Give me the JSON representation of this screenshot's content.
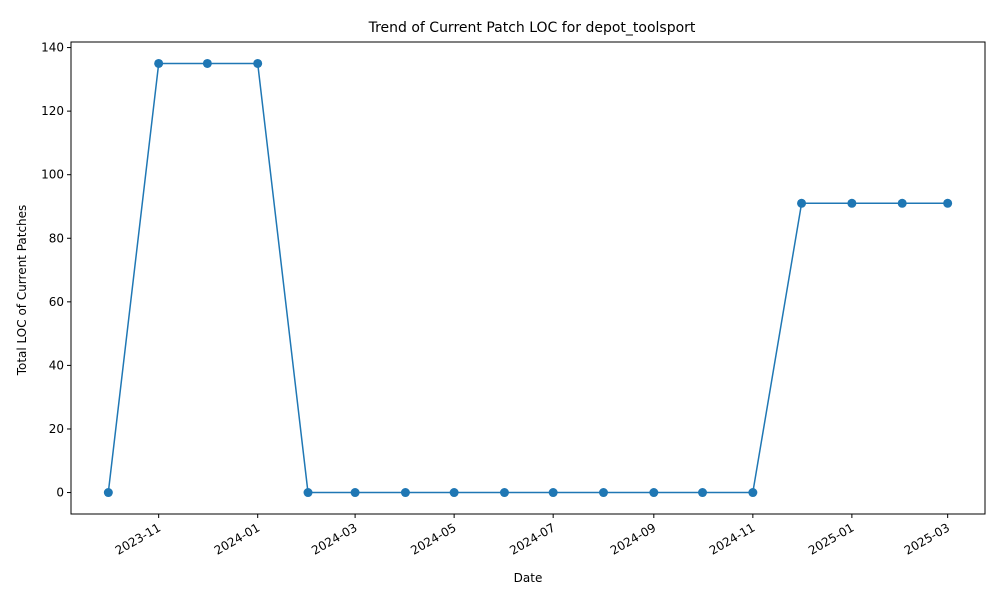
{
  "chart_data": {
    "type": "line",
    "title": "Trend of Current Patch LOC for depot_toolsport",
    "xlabel": "Date",
    "ylabel": "Total LOC of Current Patches",
    "x": [
      "2023-10-01",
      "2023-11-01",
      "2023-12-01",
      "2024-01-01",
      "2024-02-01",
      "2024-03-01",
      "2024-04-01",
      "2024-05-01",
      "2024-06-01",
      "2024-07-01",
      "2024-08-01",
      "2024-09-01",
      "2024-10-01",
      "2024-11-01",
      "2024-12-01",
      "2025-01-01",
      "2025-02-01",
      "2025-03-01"
    ],
    "values": [
      0,
      135,
      135,
      135,
      0,
      0,
      0,
      0,
      0,
      0,
      0,
      0,
      0,
      0,
      91,
      91,
      91,
      91
    ],
    "ylim": [
      -6.75,
      141.75
    ],
    "xlim": [
      "2023-09-08",
      "2025-03-24"
    ],
    "yticks": [
      0,
      20,
      40,
      60,
      80,
      100,
      120,
      140
    ],
    "xticks": [
      "2023-11-01",
      "2024-01-01",
      "2024-03-01",
      "2024-05-01",
      "2024-07-01",
      "2024-09-01",
      "2024-11-01",
      "2025-01-01",
      "2025-03-01"
    ],
    "xtick_labels": [
      "2023-11",
      "2024-01",
      "2024-03",
      "2024-05",
      "2024-07",
      "2024-09",
      "2024-11",
      "2025-01",
      "2025-03"
    ],
    "marker": "circle",
    "line_color": "#1f77b4",
    "grid": false
  }
}
